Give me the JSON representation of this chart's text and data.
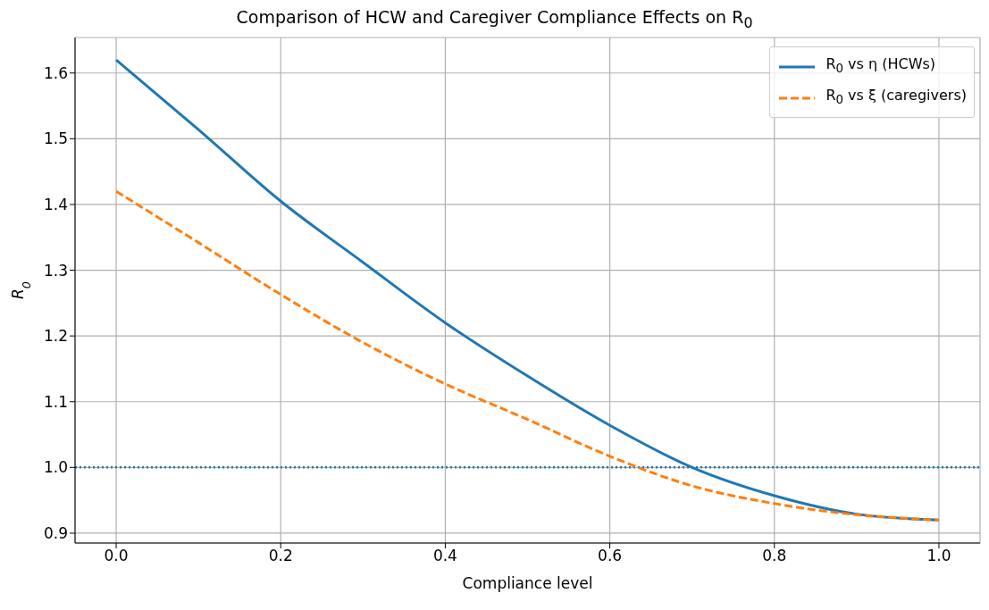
{
  "chart_data": {
    "type": "line",
    "title": "Comparison of HCW and Caregiver Compliance Effects on R$_{0}$",
    "xlabel": "Compliance level",
    "ylabel": "R$_{0}$",
    "x": [
      0,
      0.1,
      0.2,
      0.3,
      0.4,
      0.5,
      0.6,
      0.7,
      0.8,
      0.9,
      1.0
    ],
    "series": [
      {
        "name": "R$_{0}$ vs η (HCWs)",
        "color": "#1f77b4",
        "line_style": "solid",
        "values": [
          1.62,
          1.514,
          1.405,
          1.312,
          1.22,
          1.139,
          1.064,
          1.0,
          0.957,
          0.929,
          0.92
        ]
      },
      {
        "name": "R$_{0}$ vs ξ (caregivers)",
        "color": "#ff7f0e",
        "line_style": "dashed",
        "values": [
          1.42,
          1.342,
          1.263,
          1.19,
          1.127,
          1.073,
          1.017,
          0.972,
          0.945,
          0.928,
          0.92
        ]
      }
    ],
    "xlim": [
      -0.05,
      1.05
    ],
    "xticks": [
      {
        "value": 0,
        "label": "0.0"
      },
      0.2,
      0.4,
      0.6,
      0.8,
      {
        "value": 1,
        "label": "1.0"
      }
    ],
    "ylim": [
      0.885,
      1.654
    ],
    "yticks": [
      0.9,
      {
        "value": 1,
        "label": "1.0"
      },
      1.1,
      1.2,
      1.3,
      1.4,
      1.5,
      1.6
    ],
    "ref_lines": [
      {
        "axis": "y",
        "value": 1.0,
        "color": "#1f77b4",
        "line_style": "dotted"
      }
    ],
    "grid": true,
    "legend": "top right",
    "marker": "none"
  }
}
